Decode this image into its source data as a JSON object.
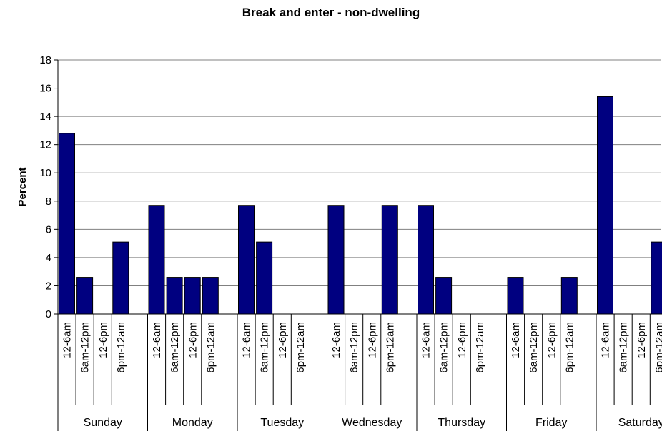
{
  "chart_data": {
    "type": "bar",
    "title": "Break and enter - non-dwelling",
    "ylabel": "Percent",
    "xlabel": "",
    "ylim": [
      0,
      18
    ],
    "yticks": [
      0,
      2,
      4,
      6,
      8,
      10,
      12,
      14,
      16,
      18
    ],
    "grid": true,
    "legend": "none",
    "bar_color": "#000080",
    "groups": [
      "Sunday",
      "Monday",
      "Tuesday",
      "Wednesday",
      "Thursday",
      "Friday",
      "Saturday"
    ],
    "subcategories": [
      "12-6am",
      "6am-12pm",
      "12-6pm",
      "6pm-12am"
    ],
    "values": [
      [
        12.8,
        2.6,
        0,
        5.1
      ],
      [
        7.7,
        2.6,
        2.6,
        2.6
      ],
      [
        7.7,
        5.1,
        0,
        0
      ],
      [
        7.7,
        0,
        0,
        7.7
      ],
      [
        7.7,
        2.6,
        0,
        0
      ],
      [
        2.6,
        0,
        0,
        2.6
      ],
      [
        15.4,
        0,
        0,
        5.1
      ]
    ]
  }
}
